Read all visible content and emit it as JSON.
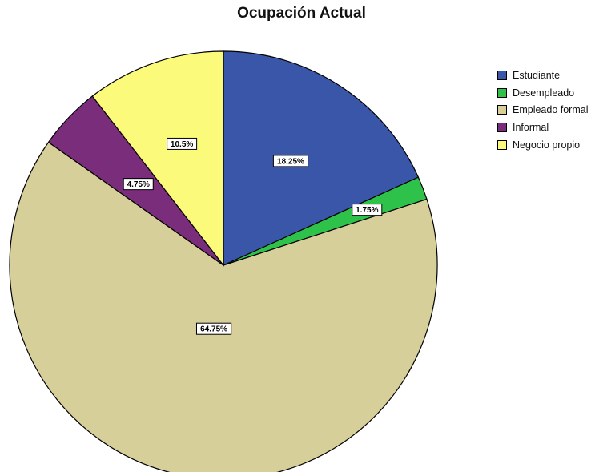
{
  "chart_data": {
    "type": "pie",
    "title": "Ocupación Actual",
    "slices": [
      {
        "name": "Estudiante",
        "value": 18.25,
        "label": "18.25%",
        "color": "#3a56a8"
      },
      {
        "name": "Desempleado",
        "value": 1.75,
        "label": "1.75%",
        "color": "#2fc24b"
      },
      {
        "name": "Empleado formal",
        "value": 64.75,
        "label": "64.75%",
        "color": "#d6cf9a"
      },
      {
        "name": "Informal",
        "value": 4.75,
        "label": "4.75%",
        "color": "#7a2d7a"
      },
      {
        "name": "Negocio propio",
        "value": 10.5,
        "label": "10.5%",
        "color": "#fcfa7a"
      }
    ],
    "legend_position": "right",
    "start": "12 o'clock",
    "direction": "clockwise"
  }
}
